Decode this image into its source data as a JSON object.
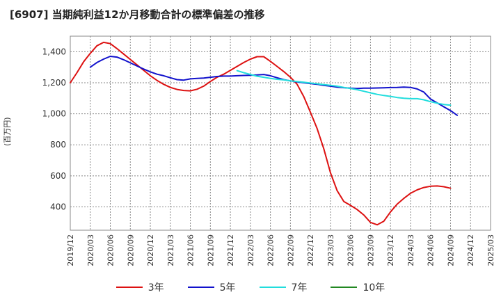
{
  "title": "[6907]  当期純利益12か月移動合計の標準偏差の推移",
  "chart_data": {
    "type": "line",
    "ylabel": "(百万円)",
    "ylim": [
      250,
      1500
    ],
    "yticks": [
      400,
      600,
      800,
      1000,
      1200,
      1400
    ],
    "ytick_labels": [
      "400",
      "600",
      "800",
      "1,000",
      "1,200",
      "1,400"
    ],
    "x_labels": [
      "2019/12",
      "2020/03",
      "2020/06",
      "2020/09",
      "2020/12",
      "2021/03",
      "2021/06",
      "2021/09",
      "2021/12",
      "2022/03",
      "2022/06",
      "2022/09",
      "2022/12",
      "2023/03",
      "2023/06",
      "2023/09",
      "2023/12",
      "2024/03",
      "2024/06",
      "2024/09",
      "2024/12",
      "2025/03"
    ],
    "grid": true,
    "legend_position": "bottom",
    "series": [
      {
        "name": "3年",
        "color": "#dd1111",
        "points": [
          [
            0,
            1200
          ],
          [
            1,
            1265
          ],
          [
            2,
            1335
          ],
          [
            3,
            1390
          ],
          [
            4,
            1438
          ],
          [
            5,
            1460
          ],
          [
            6,
            1452
          ],
          [
            7,
            1420
          ],
          [
            8,
            1385
          ],
          [
            9,
            1350
          ],
          [
            10,
            1315
          ],
          [
            11,
            1280
          ],
          [
            12,
            1245
          ],
          [
            13,
            1215
          ],
          [
            14,
            1190
          ],
          [
            15,
            1170
          ],
          [
            16,
            1157
          ],
          [
            17,
            1150
          ],
          [
            18,
            1148
          ],
          [
            19,
            1158
          ],
          [
            20,
            1178
          ],
          [
            21,
            1208
          ],
          [
            22,
            1235
          ],
          [
            23,
            1255
          ],
          [
            24,
            1280
          ],
          [
            25,
            1305
          ],
          [
            26,
            1330
          ],
          [
            27,
            1352
          ],
          [
            28,
            1368
          ],
          [
            29,
            1368
          ],
          [
            30,
            1338
          ],
          [
            31,
            1305
          ],
          [
            32,
            1272
          ],
          [
            33,
            1235
          ],
          [
            34,
            1190
          ],
          [
            35,
            1110
          ],
          [
            36,
            1010
          ],
          [
            37,
            905
          ],
          [
            38,
            775
          ],
          [
            39,
            620
          ],
          [
            40,
            505
          ],
          [
            41,
            435
          ],
          [
            42,
            410
          ],
          [
            43,
            383
          ],
          [
            44,
            348
          ],
          [
            45,
            300
          ],
          [
            46,
            285
          ],
          [
            47,
            308
          ],
          [
            48,
            368
          ],
          [
            49,
            418
          ],
          [
            50,
            455
          ],
          [
            51,
            488
          ],
          [
            52,
            510
          ],
          [
            53,
            525
          ],
          [
            54,
            533
          ],
          [
            55,
            535
          ],
          [
            56,
            530
          ],
          [
            57,
            520
          ]
        ]
      },
      {
        "name": "5年",
        "color": "#1111cc",
        "points": [
          [
            6,
            1300
          ],
          [
            8,
            1330
          ],
          [
            10,
            1352
          ],
          [
            12,
            1370
          ],
          [
            14,
            1365
          ],
          [
            16,
            1348
          ],
          [
            18,
            1328
          ],
          [
            20,
            1308
          ],
          [
            22,
            1288
          ],
          [
            24,
            1270
          ],
          [
            26,
            1255
          ],
          [
            28,
            1245
          ],
          [
            30,
            1232
          ],
          [
            32,
            1220
          ],
          [
            34,
            1217
          ],
          [
            36,
            1225
          ],
          [
            38,
            1228
          ],
          [
            40,
            1230
          ],
          [
            42,
            1235
          ],
          [
            44,
            1240
          ],
          [
            46,
            1243
          ],
          [
            48,
            1243
          ],
          [
            50,
            1245
          ],
          [
            52,
            1247
          ],
          [
            54,
            1248
          ],
          [
            56,
            1250
          ],
          [
            58,
            1253
          ],
          [
            60,
            1245
          ],
          [
            62,
            1232
          ],
          [
            64,
            1220
          ],
          [
            66,
            1212
          ],
          [
            68,
            1205
          ],
          [
            70,
            1200
          ],
          [
            72,
            1195
          ],
          [
            74,
            1190
          ],
          [
            76,
            1183
          ],
          [
            78,
            1178
          ],
          [
            80,
            1172
          ],
          [
            82,
            1168
          ],
          [
            84,
            1165
          ],
          [
            86,
            1163
          ],
          [
            88,
            1165
          ],
          [
            90,
            1165
          ],
          [
            92,
            1166
          ],
          [
            94,
            1167
          ],
          [
            96,
            1169
          ],
          [
            98,
            1170
          ],
          [
            100,
            1172
          ],
          [
            102,
            1170
          ],
          [
            104,
            1160
          ],
          [
            106,
            1140
          ],
          [
            108,
            1095
          ],
          [
            110,
            1070
          ],
          [
            112,
            1045
          ],
          [
            114,
            1020
          ],
          [
            116,
            990
          ]
        ],
        "x_scale": "half-month"
      },
      {
        "name": "7年",
        "color": "#22dddd",
        "points": [
          [
            25,
            1278
          ],
          [
            26,
            1265
          ],
          [
            27,
            1253
          ],
          [
            28,
            1242
          ],
          [
            29,
            1235
          ],
          [
            30,
            1228
          ],
          [
            31,
            1222
          ],
          [
            32,
            1218
          ],
          [
            33,
            1212
          ],
          [
            34,
            1208
          ],
          [
            35,
            1203
          ],
          [
            36,
            1198
          ],
          [
            37,
            1193
          ],
          [
            38,
            1188
          ],
          [
            39,
            1183
          ],
          [
            40,
            1178
          ],
          [
            41,
            1170
          ],
          [
            42,
            1163
          ],
          [
            43,
            1155
          ],
          [
            44,
            1145
          ],
          [
            45,
            1135
          ],
          [
            46,
            1125
          ],
          [
            47,
            1118
          ],
          [
            48,
            1112
          ],
          [
            49,
            1105
          ],
          [
            50,
            1100
          ],
          [
            51,
            1097
          ],
          [
            52,
            1097
          ],
          [
            53,
            1090
          ],
          [
            54,
            1078
          ],
          [
            55,
            1068
          ],
          [
            56,
            1060
          ],
          [
            57,
            1055
          ]
        ]
      },
      {
        "name": "10年",
        "color": "#228822",
        "points": []
      }
    ]
  }
}
